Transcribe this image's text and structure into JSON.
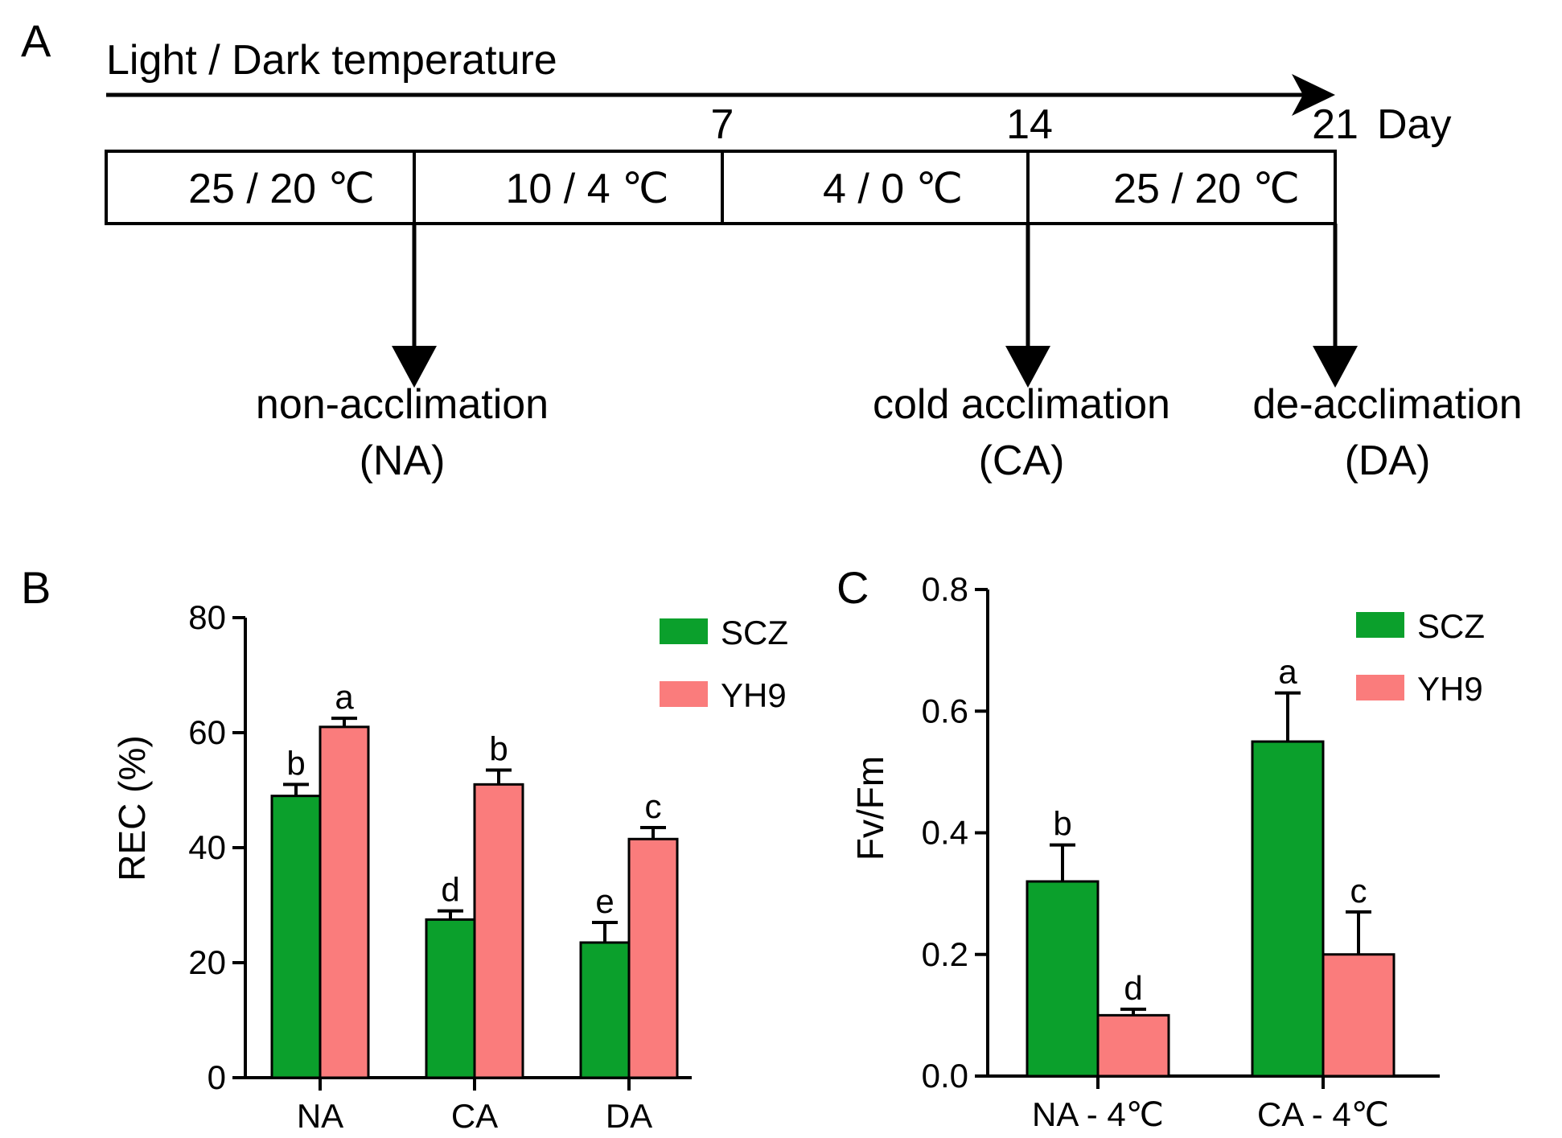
{
  "panel_a": {
    "letter": "A",
    "header": "Light / Dark  temperature",
    "day_ticks": [
      "7",
      "14",
      "21"
    ],
    "day_unit": "Day",
    "periods": [
      "25 / 20 ℃",
      "10 / 4 ℃",
      "4 / 0 ℃",
      "25 / 20 ℃"
    ],
    "stages": [
      {
        "name": "non-acclimation",
        "abbr": "(NA)"
      },
      {
        "name": "cold acclimation",
        "abbr": "(CA)"
      },
      {
        "name": "de-acclimation",
        "abbr": "(DA)"
      }
    ]
  },
  "colors": {
    "SCZ": "#0ba02c",
    "YH9": "#fa7c7c",
    "axis": "#000000"
  },
  "chart_data": [
    {
      "panel": "B",
      "type": "bar",
      "ylabel": "REC (%)",
      "xlabel": "",
      "ylim": [
        0,
        80
      ],
      "yticks": [
        "0",
        "20",
        "40",
        "60",
        "80"
      ],
      "categories": [
        "NA",
        "CA",
        "DA"
      ],
      "legend": [
        "SCZ",
        "YH9"
      ],
      "legend_position": "top-right",
      "series": [
        {
          "name": "SCZ",
          "values": [
            49,
            27.5,
            23.5
          ],
          "errors": [
            2,
            1.5,
            3.5
          ],
          "letters": [
            "b",
            "d",
            "e"
          ]
        },
        {
          "name": "YH9",
          "values": [
            61,
            51,
            41.5
          ],
          "errors": [
            1.5,
            2.5,
            2
          ],
          "letters": [
            "a",
            "b",
            "c"
          ]
        }
      ]
    },
    {
      "panel": "C",
      "type": "bar",
      "ylabel": "Fv/Fm",
      "xlabel": "",
      "ylim": [
        0,
        0.8
      ],
      "yticks": [
        "0.0",
        "0.2",
        "0.4",
        "0.6",
        "0.8"
      ],
      "categories": [
        "NA - 4℃",
        "CA - 4℃"
      ],
      "legend": [
        "SCZ",
        "YH9"
      ],
      "legend_position": "top-right",
      "series": [
        {
          "name": "SCZ",
          "values": [
            0.32,
            0.55
          ],
          "errors": [
            0.06,
            0.08
          ],
          "letters": [
            "b",
            "a"
          ]
        },
        {
          "name": "YH9",
          "values": [
            0.1,
            0.2
          ],
          "errors": [
            0.01,
            0.07
          ],
          "letters": [
            "d",
            "c"
          ]
        }
      ]
    }
  ]
}
